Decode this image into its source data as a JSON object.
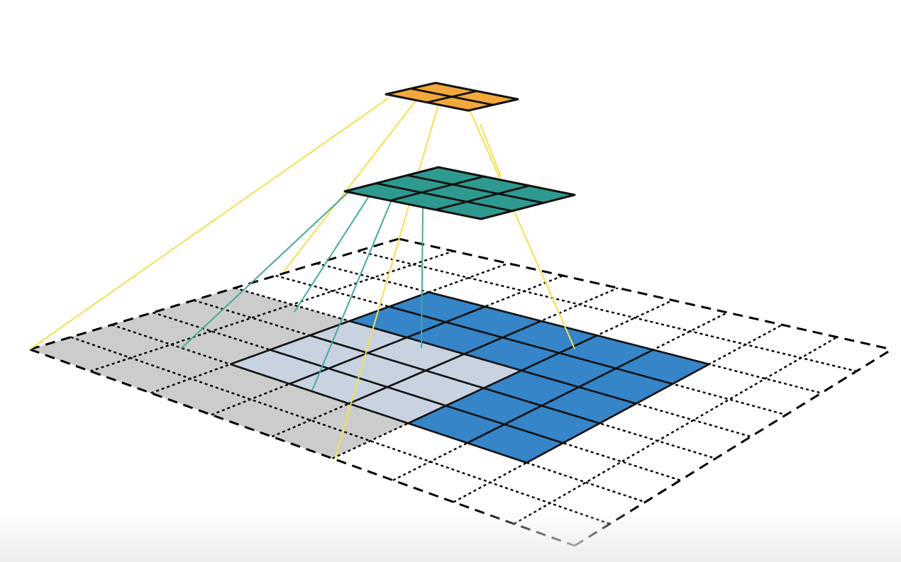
{
  "diagram": {
    "kind": "receptive-field illustration",
    "layers": [
      {
        "id": "input",
        "rows": 9,
        "cols": 9,
        "cell_style": "dotted",
        "fill": "#ffffff"
      },
      {
        "id": "hidden",
        "rows": 3,
        "cols": 3,
        "fill": "#2e9a8f"
      },
      {
        "id": "output",
        "rows": 2,
        "cols": 2,
        "fill": "#f2a93b"
      }
    ],
    "highlights": [
      {
        "id": "gray-receptive-field",
        "rows": [
          0,
          5
        ],
        "cols": [
          0,
          5
        ],
        "fill": "#cccccc"
      },
      {
        "id": "blue-receptive-field",
        "rows": [
          2,
          7
        ],
        "cols": [
          2,
          7
        ],
        "fill": "#3585c8"
      }
    ],
    "connections": [
      {
        "from": "output",
        "to": "input",
        "color": "#f4e04d"
      },
      {
        "from": "hidden",
        "to": "input",
        "color": "#45a99d"
      }
    ],
    "colors": {
      "grid_line": "#000000",
      "overlap": "#c8d2e0",
      "yellow_line": "#f4e04d",
      "teal_line": "#45a99d"
    }
  }
}
